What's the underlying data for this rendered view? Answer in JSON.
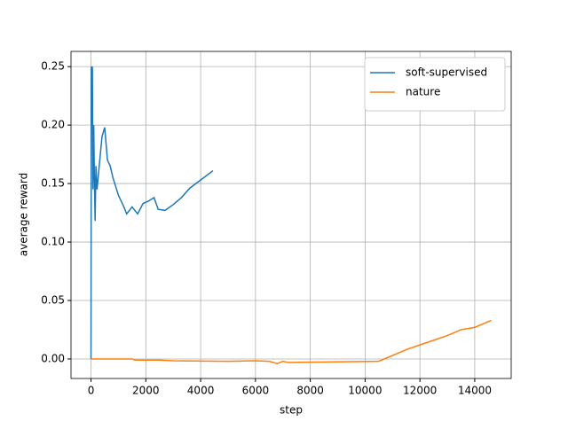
{
  "chart_data": {
    "type": "line",
    "xlabel": "step",
    "ylabel": "average reward",
    "xlim": [
      -730,
      15330
    ],
    "xticks": [
      0,
      2000,
      4000,
      6000,
      8000,
      10000,
      12000,
      14000
    ],
    "ylim": [
      -0.0167,
      0.263
    ],
    "yticks": [
      {
        "value": 0,
        "label": "0.00"
      },
      {
        "value": 0.05,
        "label": "0.05"
      },
      {
        "value": 0.1,
        "label": "0.10"
      },
      0.15,
      {
        "value": 0.2,
        "label": "0.20"
      },
      0.25
    ],
    "grid": true,
    "legend": "upper-right",
    "series": [
      {
        "name": "soft-supervised",
        "color": "#1f77b4",
        "x": [
          0,
          10,
          30,
          50,
          70,
          100,
          120,
          150,
          180,
          220,
          300,
          400,
          500,
          600,
          700,
          800,
          1000,
          1200,
          1300,
          1500,
          1700,
          1900,
          2100,
          2300,
          2450,
          2700,
          3000,
          3300,
          3600,
          4000,
          4450
        ],
        "values": [
          0,
          0.25,
          0.2,
          0.25,
          0.145,
          0.2,
          0.16,
          0.118,
          0.165,
          0.145,
          0.165,
          0.19,
          0.198,
          0.17,
          0.165,
          0.155,
          0.14,
          0.13,
          0.124,
          0.13,
          0.124,
          0.133,
          0.135,
          0.138,
          0.128,
          0.127,
          0.132,
          0.138,
          0.146,
          0.153,
          0.161
        ]
      },
      {
        "name": "nature",
        "color": "#ff7f0e",
        "x": [
          0,
          1500,
          1600,
          2500,
          3000,
          5000,
          6000,
          6500,
          6800,
          7000,
          7200,
          9000,
          10500,
          11000,
          11500,
          12000,
          12500,
          13000,
          13500,
          14000,
          14300,
          14600
        ],
        "values": [
          0,
          0,
          -0.001,
          -0.001,
          -0.0015,
          -0.002,
          -0.0015,
          -0.002,
          -0.004,
          -0.002,
          -0.003,
          -0.0025,
          -0.002,
          0.003,
          0.008,
          0.012,
          0.016,
          0.02,
          0.025,
          0.027,
          0.03,
          0.033
        ]
      }
    ]
  }
}
